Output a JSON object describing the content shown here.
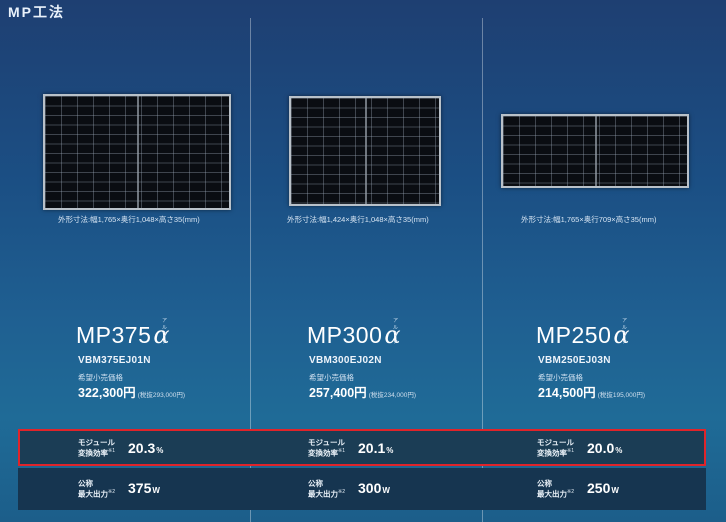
{
  "section_title": "MP工法",
  "spec_labels": {
    "efficiency_line1": "モジュール",
    "efficiency_line2": "変換効率",
    "efficiency_note": "※1",
    "output_line1": "公称",
    "output_line2": "最大出力",
    "output_note": "※2"
  },
  "products": [
    {
      "dimensions": "外形寸法:幅1,765×奥行1,048×高さ35(mm)",
      "model": "MP375",
      "alpha": "α",
      "ruby": "アルファ",
      "code": "VBM375EJ01N",
      "price_label": "希望小売価格",
      "price": "322,300円",
      "price_tax": "(税抜293,000円)",
      "efficiency": "20.3",
      "efficiency_unit": "%",
      "output": "375",
      "output_unit": "W"
    },
    {
      "dimensions": "外形寸法:幅1,424×奥行1,048×高さ35(mm)",
      "model": "MP300",
      "alpha": "α",
      "ruby": "アルファ",
      "code": "VBM300EJ02N",
      "price_label": "希望小売価格",
      "price": "257,400円",
      "price_tax": "(税抜234,000円)",
      "efficiency": "20.1",
      "efficiency_unit": "%",
      "output": "300",
      "output_unit": "W"
    },
    {
      "dimensions": "外形寸法:幅1,765×奥行709×高さ35(mm)",
      "model": "MP250",
      "alpha": "α",
      "ruby": "アルファ",
      "code": "VBM250EJ03N",
      "price_label": "希望小売価格",
      "price": "214,500円",
      "price_tax": "(税抜195,000円)",
      "efficiency": "20.0",
      "efficiency_unit": "%",
      "output": "250",
      "output_unit": "W"
    }
  ]
}
